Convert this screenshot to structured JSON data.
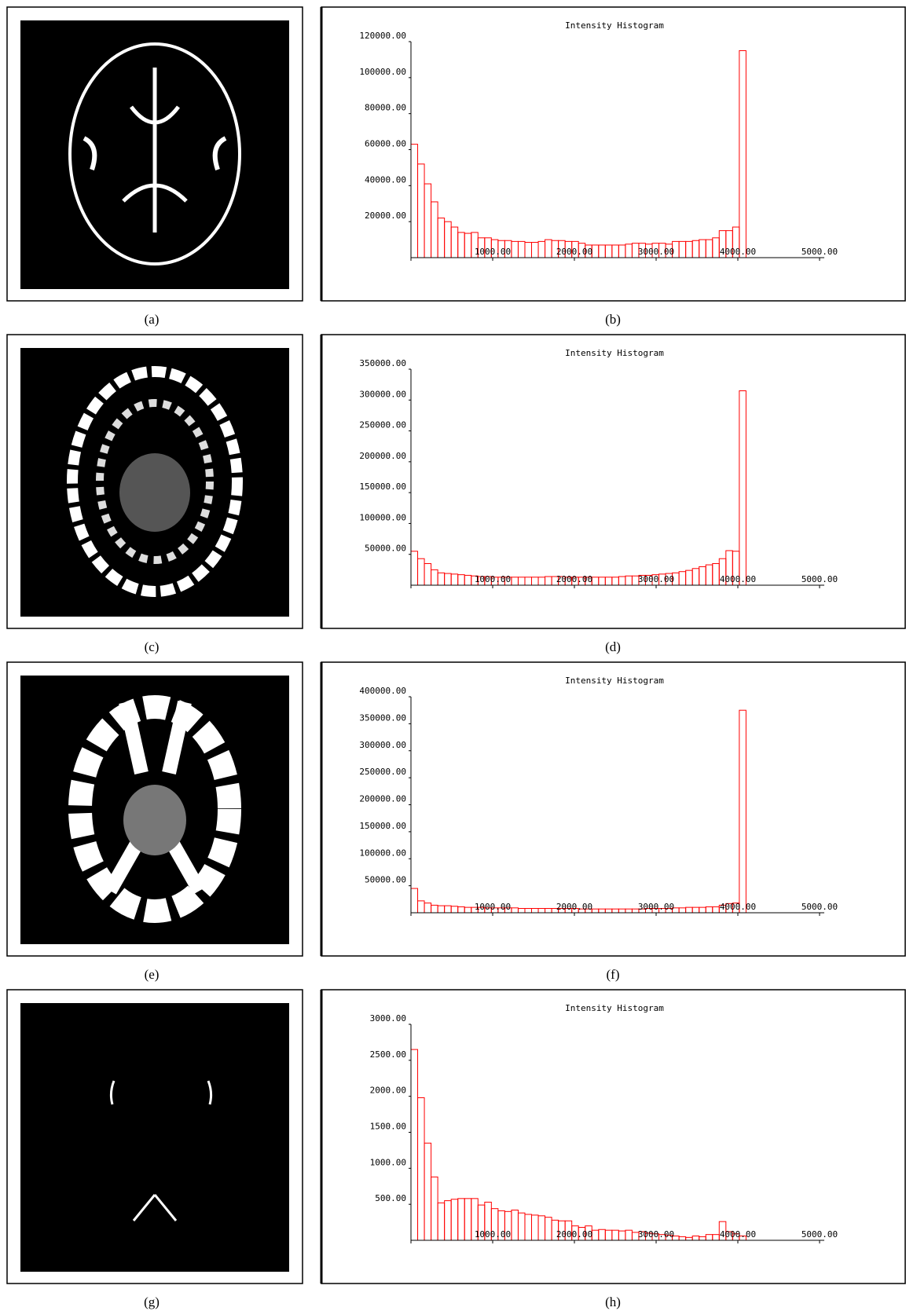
{
  "image_captions": [
    "(a)",
    "(c)",
    "(e)",
    "(g)"
  ],
  "chart_data": [
    {
      "type": "histogram",
      "title": "Intensity Histogram",
      "caption": "(b)",
      "color": "#ff0000",
      "bins": [
        0,
        82,
        164,
        246,
        328,
        410,
        492,
        574,
        656,
        738,
        820,
        902,
        984,
        1066,
        1148,
        1230,
        1312,
        1394,
        1476,
        1558,
        1640,
        1722,
        1804,
        1886,
        1968,
        2050,
        2132,
        2214,
        2296,
        2378,
        2460,
        2542,
        2624,
        2706,
        2788,
        2870,
        2952,
        3034,
        3116,
        3198,
        3280,
        3362,
        3444,
        3526,
        3608,
        3690,
        3772,
        3854,
        3936,
        4018,
        4100
      ],
      "values": [
        63000,
        52000,
        41000,
        31000,
        22000,
        20000,
        17000,
        14000,
        13500,
        14000,
        11000,
        11000,
        10000,
        9500,
        9500,
        9000,
        9000,
        8500,
        8500,
        9000,
        10000,
        9500,
        9500,
        9000,
        9000,
        8000,
        7000,
        7000,
        7000,
        7000,
        7000,
        7000,
        7500,
        8000,
        8000,
        7500,
        8000,
        8000,
        7500,
        9000,
        9000,
        9000,
        9500,
        10000,
        10000,
        11000,
        15000,
        15000,
        17000,
        115000
      ],
      "xlim": [
        0,
        5000
      ],
      "xticks": [
        {
          "value": 1000,
          "label": "1000.00"
        },
        {
          "value": 2000,
          "label": "2000.00"
        },
        {
          "value": 3000,
          "label": "3000.00"
        },
        {
          "value": 4000,
          "label": "4000.00"
        },
        {
          "value": 5000,
          "label": "5000.00"
        }
      ],
      "ylim": [
        0,
        120000
      ],
      "yticks": [
        {
          "value": 20000,
          "label": "20000.00"
        },
        {
          "value": 40000,
          "label": "40000.00"
        },
        {
          "value": 60000,
          "label": "60000.00"
        },
        {
          "value": 80000,
          "label": "80000.00"
        },
        {
          "value": 100000,
          "label": "100000.00"
        },
        {
          "value": 120000,
          "label": "120000.00"
        }
      ]
    },
    {
      "type": "histogram",
      "title": "Intensity Histogram",
      "caption": "(d)",
      "color": "#ff0000",
      "bins": [
        0,
        82,
        164,
        246,
        328,
        410,
        492,
        574,
        656,
        738,
        820,
        902,
        984,
        1066,
        1148,
        1230,
        1312,
        1394,
        1476,
        1558,
        1640,
        1722,
        1804,
        1886,
        1968,
        2050,
        2132,
        2214,
        2296,
        2378,
        2460,
        2542,
        2624,
        2706,
        2788,
        2870,
        2952,
        3034,
        3116,
        3198,
        3280,
        3362,
        3444,
        3526,
        3608,
        3690,
        3772,
        3854,
        3936,
        4018,
        4100
      ],
      "values": [
        55000,
        43000,
        35000,
        25000,
        20000,
        19000,
        18000,
        17000,
        16000,
        15000,
        14000,
        14000,
        13000,
        13000,
        13000,
        13000,
        13000,
        13000,
        13000,
        13000,
        14000,
        14000,
        14000,
        13000,
        13000,
        13000,
        13000,
        13000,
        13000,
        13000,
        13000,
        14000,
        15000,
        15000,
        16000,
        16000,
        17000,
        18000,
        19000,
        20000,
        22000,
        24000,
        27000,
        30000,
        33000,
        35000,
        43000,
        56000,
        55000,
        315000
      ],
      "xlim": [
        0,
        5000
      ],
      "xticks": [
        {
          "value": 1000,
          "label": "1000.00"
        },
        {
          "value": 2000,
          "label": "2000.00"
        },
        {
          "value": 3000,
          "label": "3000.00"
        },
        {
          "value": 4000,
          "label": "4000.00"
        },
        {
          "value": 5000,
          "label": "5000.00"
        }
      ],
      "ylim": [
        0,
        350000
      ],
      "yticks": [
        {
          "value": 50000,
          "label": "50000.00"
        },
        {
          "value": 100000,
          "label": "100000.00"
        },
        {
          "value": 150000,
          "label": "150000.00"
        },
        {
          "value": 200000,
          "label": "200000.00"
        },
        {
          "value": 250000,
          "label": "250000.00"
        },
        {
          "value": 300000,
          "label": "300000.00"
        },
        {
          "value": 350000,
          "label": "350000.00"
        }
      ]
    },
    {
      "type": "histogram",
      "title": "Intensity Histogram",
      "caption": "(f)",
      "color": "#ff0000",
      "bins": [
        0,
        82,
        164,
        246,
        328,
        410,
        492,
        574,
        656,
        738,
        820,
        902,
        984,
        1066,
        1148,
        1230,
        1312,
        1394,
        1476,
        1558,
        1640,
        1722,
        1804,
        1886,
        1968,
        2050,
        2132,
        2214,
        2296,
        2378,
        2460,
        2542,
        2624,
        2706,
        2788,
        2870,
        2952,
        3034,
        3116,
        3198,
        3280,
        3362,
        3444,
        3526,
        3608,
        3690,
        3772,
        3854,
        3936,
        4018,
        4100
      ],
      "values": [
        45000,
        22000,
        18000,
        14000,
        13000,
        13000,
        12000,
        11000,
        10000,
        10000,
        10000,
        9000,
        9000,
        9000,
        9000,
        9000,
        8000,
        8000,
        8000,
        8000,
        8000,
        8000,
        8000,
        8000,
        8000,
        7000,
        7000,
        7000,
        7000,
        7000,
        7000,
        7000,
        7000,
        7000,
        7000,
        8000,
        8000,
        8000,
        8000,
        9000,
        9000,
        10000,
        10000,
        10000,
        11000,
        11000,
        14000,
        17000,
        18000,
        375000
      ],
      "xlim": [
        0,
        5000
      ],
      "xticks": [
        {
          "value": 1000,
          "label": "1000.00"
        },
        {
          "value": 2000,
          "label": "2000.00"
        },
        {
          "value": 3000,
          "label": "3000.00"
        },
        {
          "value": 4000,
          "label": "4000.00"
        },
        {
          "value": 5000,
          "label": "5000.00"
        }
      ],
      "ylim": [
        0,
        400000
      ],
      "yticks": [
        {
          "value": 50000,
          "label": "50000.00"
        },
        {
          "value": 100000,
          "label": "100000.00"
        },
        {
          "value": 150000,
          "label": "150000.00"
        },
        {
          "value": 200000,
          "label": "200000.00"
        },
        {
          "value": 250000,
          "label": "250000.00"
        },
        {
          "value": 300000,
          "label": "300000.00"
        },
        {
          "value": 350000,
          "label": "350000.00"
        },
        {
          "value": 400000,
          "label": "400000.00"
        }
      ]
    },
    {
      "type": "histogram",
      "title": "Intensity Histogram",
      "caption": "(h)",
      "color": "#ff0000",
      "bins": [
        0,
        82,
        164,
        246,
        328,
        410,
        492,
        574,
        656,
        738,
        820,
        902,
        984,
        1066,
        1148,
        1230,
        1312,
        1394,
        1476,
        1558,
        1640,
        1722,
        1804,
        1886,
        1968,
        2050,
        2132,
        2214,
        2296,
        2378,
        2460,
        2542,
        2624,
        2706,
        2788,
        2870,
        2952,
        3034,
        3116,
        3198,
        3280,
        3362,
        3444,
        3526,
        3608,
        3690,
        3772,
        3854,
        3936,
        4018,
        4100
      ],
      "values": [
        2650,
        1980,
        1350,
        880,
        520,
        550,
        570,
        580,
        580,
        580,
        490,
        530,
        440,
        410,
        400,
        420,
        380,
        360,
        350,
        340,
        320,
        280,
        270,
        270,
        200,
        180,
        200,
        140,
        150,
        140,
        140,
        130,
        140,
        110,
        120,
        100,
        90,
        80,
        70,
        60,
        50,
        40,
        60,
        50,
        80,
        80,
        260,
        120,
        90,
        60
      ],
      "xlim": [
        0,
        5000
      ],
      "xticks": [
        {
          "value": 1000,
          "label": "1000.00"
        },
        {
          "value": 2000,
          "label": "2000.00"
        },
        {
          "value": 3000,
          "label": "3000.00"
        },
        {
          "value": 4000,
          "label": "4000.00"
        },
        {
          "value": 5000,
          "label": "5000.00"
        }
      ],
      "ylim": [
        0,
        3000
      ],
      "yticks": [
        {
          "value": 500,
          "label": "500.00"
        },
        {
          "value": 1000,
          "label": "1000.00"
        },
        {
          "value": 1500,
          "label": "1500.00"
        },
        {
          "value": 2000,
          "label": "2000.00"
        },
        {
          "value": 2500,
          "label": "2500.00"
        },
        {
          "value": 3000,
          "label": "3000.00"
        }
      ]
    }
  ]
}
